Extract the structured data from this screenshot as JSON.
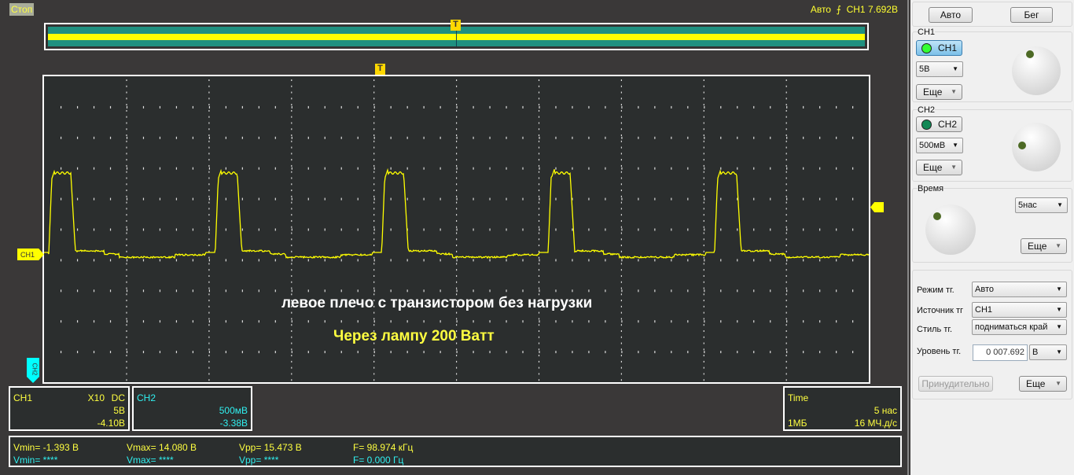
{
  "status": "Стоп",
  "trigger_status": {
    "mode": "Авто",
    "icon": "rising-edge-icon",
    "source": "CH1",
    "level": "7.692В"
  },
  "markers": {
    "trigger": "T",
    "ch1": "CH1",
    "ch2": "CH2"
  },
  "annotations": [
    "левое плечо с транзистором без нагрузки",
    "Через лампу 200 Ватт"
  ],
  "ch1_info": {
    "name": "CH1",
    "probe": "X10",
    "coupling": "DC",
    "scale": "5В",
    "offset": "-4.10В"
  },
  "ch2_info": {
    "name": "CH2",
    "scale": "500мВ",
    "offset": "-3.38В"
  },
  "time_info": {
    "label": "Time",
    "scale": "5 нас",
    "memory": "1МБ",
    "rate": "16 МЧ.д/с"
  },
  "measurements": {
    "ch1": {
      "vmin": "Vmin= -1.393 В",
      "vmax": "Vmax= 14.080 В",
      "vpp": "Vpp= 15.473 В",
      "f": "F= 98.974 кГц"
    },
    "ch2": {
      "vmin": "Vmin= ****",
      "vmax": "Vmax= ****",
      "vpp": "Vpp= ****",
      "f": "F= 0.000 Гц"
    }
  },
  "panel": {
    "auto": "Авто",
    "run": "Бег",
    "ch1": {
      "title": "CH1",
      "toggle": "CH1",
      "scale": "5В",
      "more": "Еще"
    },
    "ch2": {
      "title": "CH2",
      "toggle": "CH2",
      "scale": "500мВ",
      "more": "Еще"
    },
    "time": {
      "title": "Время",
      "scale": "5нас",
      "more": "Еще"
    },
    "trigger": {
      "mode_label": "Режим тг.",
      "mode": "Авто",
      "source_label": "Источник тг",
      "source": "CH1",
      "style_label": "Стиль тг.",
      "style": "подниматься край",
      "level_label": "Уровень тг.",
      "level": "0 007.692",
      "unit": "В",
      "force": "Принудительно",
      "more": "Еще"
    }
  },
  "colors": {
    "ch1": "#ffff00",
    "ch2": "#00ffff",
    "grid_bg": "#2b2e2e"
  }
}
